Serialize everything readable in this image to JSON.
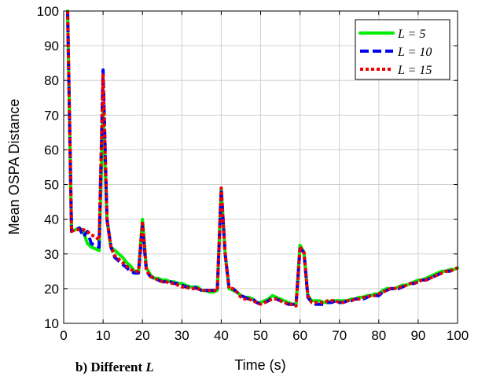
{
  "caption": {
    "text": "b) Different",
    "variable": "L"
  },
  "chart_data": {
    "type": "line",
    "xlabel": "Time (s)",
    "ylabel": "Mean OSPA Distance",
    "xlim": [
      0,
      100
    ],
    "ylim": [
      10,
      100
    ],
    "xticks": [
      0,
      10,
      20,
      30,
      40,
      50,
      60,
      70,
      80,
      90,
      100
    ],
    "yticks": [
      10,
      20,
      30,
      40,
      50,
      60,
      70,
      80,
      90,
      100
    ],
    "grid": true,
    "legend_position": "top-right",
    "series": [
      {
        "name": "L = 5",
        "color": "#00ee00",
        "style": "solid",
        "x": [
          1,
          2,
          3,
          4,
          5,
          6,
          7,
          8,
          9,
          10,
          11,
          12,
          13,
          14,
          15,
          16,
          17,
          18,
          19,
          20,
          21,
          22,
          23,
          24,
          25,
          26,
          27,
          28,
          29,
          30,
          31,
          32,
          33,
          34,
          35,
          36,
          37,
          38,
          39,
          40,
          41,
          42,
          43,
          44,
          45,
          46,
          47,
          48,
          49,
          50,
          51,
          52,
          53,
          54,
          55,
          56,
          57,
          58,
          59,
          60,
          61,
          62,
          63,
          64,
          65,
          66,
          67,
          68,
          69,
          70,
          71,
          72,
          73,
          74,
          75,
          76,
          77,
          78,
          79,
          80,
          81,
          82,
          83,
          84,
          85,
          86,
          87,
          88,
          89,
          90,
          91,
          92,
          93,
          94,
          95,
          96,
          97,
          98,
          99,
          100
        ],
        "y": [
          100,
          36.5,
          37,
          37.5,
          36.5,
          33,
          32,
          31.5,
          31,
          72,
          40,
          32,
          31,
          30,
          29,
          27.5,
          26.5,
          25,
          25,
          40,
          26,
          24,
          23,
          23,
          22.5,
          22.5,
          22,
          22,
          21.5,
          21.5,
          21,
          20.5,
          20.5,
          20.5,
          19.5,
          19.5,
          19,
          19,
          19.5,
          49,
          30,
          20,
          19.5,
          19,
          18,
          17.5,
          17.5,
          17,
          16,
          16,
          16.5,
          17,
          18,
          17.5,
          17,
          16.5,
          16,
          15.5,
          15.5,
          32.5,
          30.5,
          18,
          16.5,
          16.5,
          16.5,
          16,
          16,
          16.5,
          16.5,
          16.5,
          16.5,
          16.5,
          17,
          17,
          17.5,
          17.5,
          18,
          18,
          18.5,
          18.5,
          19.5,
          20,
          20,
          20,
          20.5,
          21,
          21,
          21.5,
          22,
          22.5,
          22.5,
          23,
          23.5,
          24,
          24.5,
          25,
          25,
          25.5,
          25.5,
          26
        ]
      },
      {
        "name": "L = 10",
        "color": "#0000ee",
        "style": "dashed",
        "x": [
          1,
          2,
          3,
          4,
          5,
          6,
          7,
          8,
          9,
          10,
          11,
          12,
          13,
          14,
          15,
          16,
          17,
          18,
          19,
          20,
          21,
          22,
          23,
          24,
          25,
          26,
          27,
          28,
          29,
          30,
          31,
          32,
          33,
          34,
          35,
          36,
          37,
          38,
          39,
          40,
          41,
          42,
          43,
          44,
          45,
          46,
          47,
          48,
          49,
          50,
          51,
          52,
          53,
          54,
          55,
          56,
          57,
          58,
          59,
          60,
          61,
          62,
          63,
          64,
          65,
          66,
          67,
          68,
          69,
          70,
          71,
          72,
          73,
          74,
          75,
          76,
          77,
          78,
          79,
          80,
          81,
          82,
          83,
          84,
          85,
          86,
          87,
          88,
          89,
          90,
          91,
          92,
          93,
          94,
          95,
          96,
          97,
          98,
          99,
          100
        ],
        "y": [
          100,
          36.5,
          37,
          37.5,
          35,
          36.5,
          33,
          32.5,
          32,
          83,
          40,
          32,
          29,
          28,
          27,
          26,
          25,
          24.5,
          24.5,
          38,
          25,
          23.5,
          23,
          22.5,
          22,
          22,
          22,
          21.5,
          21.5,
          21,
          20.5,
          20.5,
          20.5,
          20,
          19.5,
          19.5,
          19.5,
          19.5,
          19.5,
          48.5,
          30,
          20,
          20,
          19,
          18,
          17.5,
          17,
          17,
          16,
          15.5,
          16,
          16.5,
          17.5,
          17,
          16.5,
          16,
          15.5,
          15.5,
          15.5,
          31.5,
          30.5,
          17.5,
          16,
          15.5,
          15.5,
          15.5,
          16,
          16,
          16.5,
          16,
          16,
          16.5,
          16.5,
          17,
          17,
          17,
          17.5,
          18,
          18,
          18,
          19,
          19.5,
          20,
          20,
          20,
          20.5,
          21,
          21.5,
          21.5,
          22,
          22.5,
          22.5,
          23,
          23.5,
          24,
          24.5,
          25,
          25,
          25.5,
          26
        ]
      },
      {
        "name": "L = 15",
        "color": "#ee0000",
        "style": "dotted",
        "x": [
          1,
          2,
          3,
          4,
          5,
          6,
          7,
          8,
          9,
          10,
          11,
          12,
          13,
          14,
          15,
          16,
          17,
          18,
          19,
          20,
          21,
          22,
          23,
          24,
          25,
          26,
          27,
          28,
          29,
          30,
          31,
          32,
          33,
          34,
          35,
          36,
          37,
          38,
          39,
          40,
          41,
          42,
          43,
          44,
          45,
          46,
          47,
          48,
          49,
          50,
          51,
          52,
          53,
          54,
          55,
          56,
          57,
          58,
          59,
          60,
          61,
          62,
          63,
          64,
          65,
          66,
          67,
          68,
          69,
          70,
          71,
          72,
          73,
          74,
          75,
          76,
          77,
          78,
          79,
          80,
          81,
          82,
          83,
          84,
          85,
          86,
          87,
          88,
          89,
          90,
          91,
          92,
          93,
          94,
          95,
          96,
          97,
          98,
          99,
          100
        ],
        "y": [
          100,
          36.5,
          37,
          37,
          37,
          36.5,
          35.5,
          35,
          34,
          82,
          40,
          32,
          29.5,
          28.5,
          27.5,
          26.5,
          25.5,
          25,
          25,
          39.5,
          25.5,
          23.5,
          23,
          22.5,
          22,
          22,
          21.5,
          21.5,
          21,
          20.5,
          20.5,
          20,
          20,
          20,
          19.5,
          19.5,
          19.5,
          19.5,
          19.5,
          49,
          30,
          20,
          20,
          19,
          17.5,
          17,
          17,
          16.5,
          16,
          15.5,
          16,
          16.5,
          17,
          17,
          16.5,
          16,
          15.5,
          15.5,
          15,
          32,
          30.5,
          18,
          16,
          16,
          16,
          16,
          16.5,
          16.5,
          16.5,
          16,
          16,
          16.5,
          16.5,
          17,
          17,
          17.5,
          17.5,
          18,
          18,
          18.5,
          19,
          19.5,
          20,
          20,
          20.5,
          20.5,
          21,
          21.5,
          21.5,
          22,
          22.5,
          22.5,
          23,
          23.5,
          24,
          24.5,
          25,
          25,
          25.5,
          26
        ]
      }
    ]
  }
}
